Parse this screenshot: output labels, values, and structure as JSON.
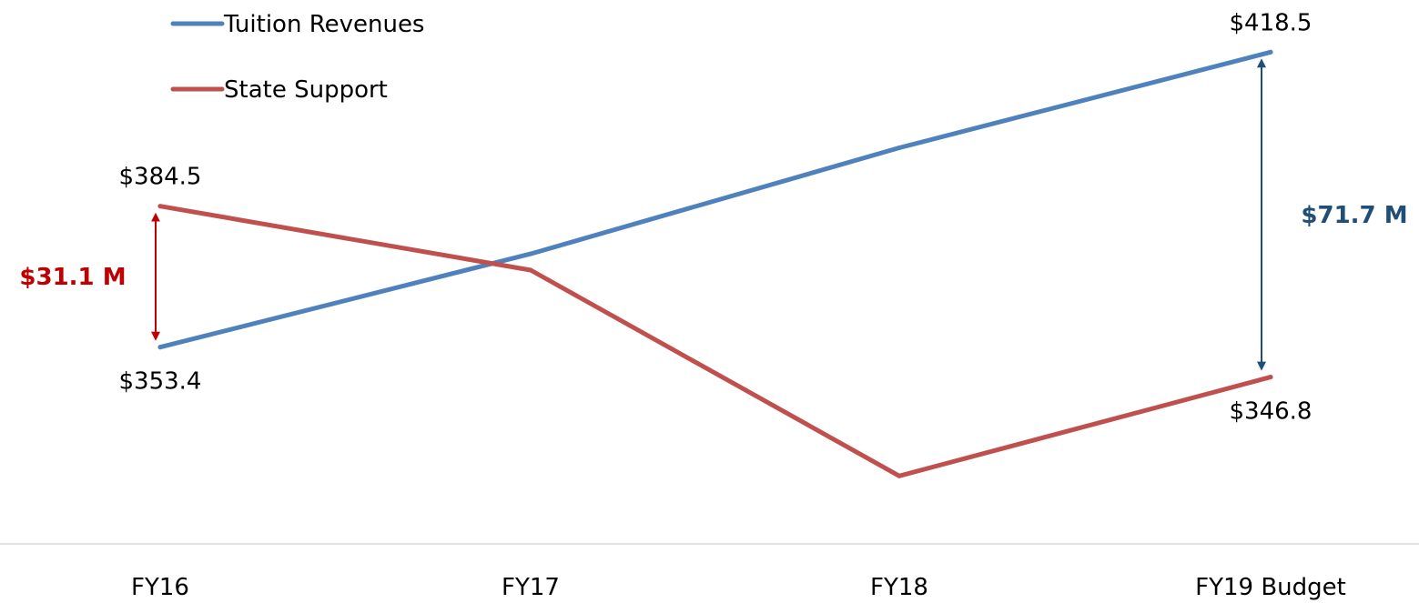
{
  "chart_data": {
    "type": "line",
    "categories": [
      "FY16",
      "FY17",
      "FY18",
      "FY19 Budget"
    ],
    "ylim": [
      310,
      430
    ],
    "grid": false,
    "legend_position": "top-left",
    "series": [
      {
        "name": "Tuition Revenues",
        "color": "#4F81BD",
        "values": [
          353.4,
          374.0,
          397.4,
          418.5
        ],
        "labels": [
          "$353.4",
          "",
          "",
          "$418.5"
        ]
      },
      {
        "name": "State Support",
        "color": "#C0504D",
        "values": [
          384.5,
          370.4,
          325.0,
          346.8
        ],
        "labels": [
          "$384.5",
          "",
          "",
          "$346.8"
        ]
      }
    ],
    "annotations": [
      {
        "text": "$31.1 M",
        "category": "FY16",
        "from": 353.4,
        "to": 384.5,
        "color": "#C00000",
        "side": "left"
      },
      {
        "text": "$71.7 M",
        "category": "FY19 Budget",
        "from": 346.8,
        "to": 418.5,
        "color": "#1F4E79",
        "side": "right"
      }
    ]
  }
}
